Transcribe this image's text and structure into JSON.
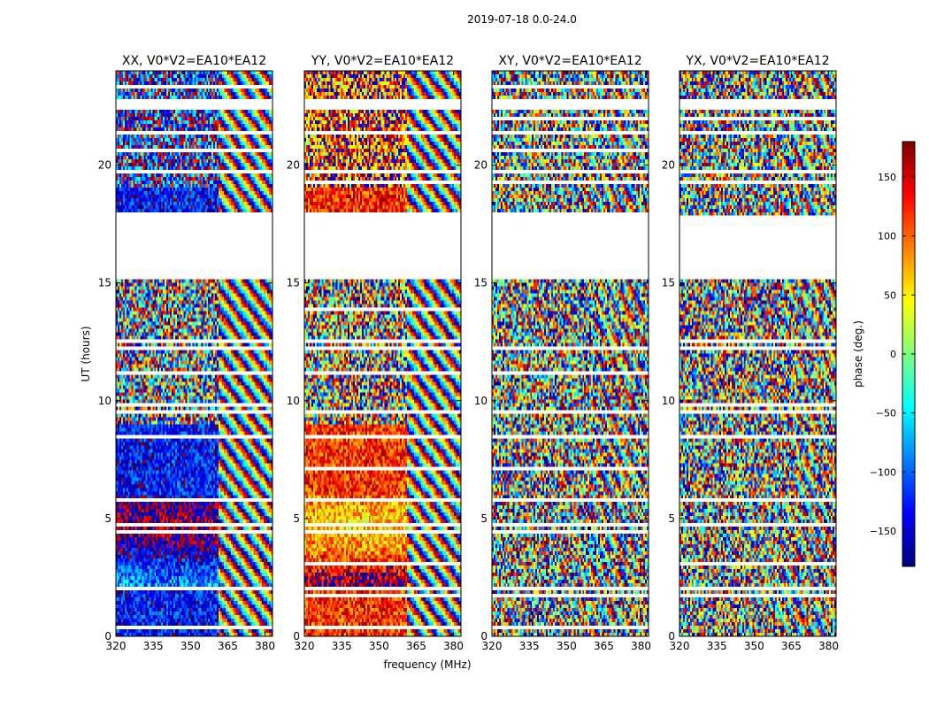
{
  "chart_data": {
    "type": "heatmap",
    "suptitle": "2019-07-18 0.0-24.0",
    "xlabel": "frequency (MHz)",
    "ylabel": "UT (hours)",
    "xlim": [
      320,
      383
    ],
    "ylim": [
      0,
      24
    ],
    "xticks": [
      320,
      335,
      350,
      365,
      380
    ],
    "yticks": [
      0,
      5,
      10,
      15,
      20
    ],
    "colorbar": {
      "label": "phase (deg.)",
      "range": [
        -180,
        180
      ],
      "ticks": [
        150,
        100,
        50,
        0,
        -50,
        -100,
        -150
      ],
      "tick_labels": [
        "150",
        "100",
        "50",
        "0",
        "−50",
        "−100",
        "−150"
      ],
      "colormap": [
        "#00007f",
        "#0000ff",
        "#007fff",
        "#00ffff",
        "#7fff7f",
        "#ffff00",
        "#ff7f00",
        "#ff0000",
        "#7f0000"
      ]
    },
    "flagged_ut_ranges": [
      [
        1.3,
        1.4
      ],
      [
        1.9,
        2.05
      ],
      [
        4.7,
        4.8
      ],
      [
        9.4,
        9.55
      ],
      [
        12.15,
        12.3
      ],
      [
        15.1,
        17.8
      ],
      [
        19.7,
        19.85
      ],
      [
        21.3,
        21.5
      ],
      [
        22.4,
        22.85
      ]
    ],
    "panels": [
      {
        "title": "XX, V0*V2=EA10*EA12",
        "pol": "XX",
        "mode": "coherent",
        "base_phase": -130,
        "late_band_phase": 25
      },
      {
        "title": "YY, V0*V2=EA10*EA12",
        "pol": "YY",
        "mode": "coherent",
        "base_phase": 120,
        "late_band_phase": -110
      },
      {
        "title": "XY, V0*V2=EA10*EA12",
        "pol": "XY",
        "mode": "noise",
        "base_phase": 0,
        "late_band_phase": 0
      },
      {
        "title": "YX, V0*V2=EA10*EA12",
        "pol": "YX",
        "mode": "noise",
        "base_phase": 0,
        "late_band_phase": 0
      }
    ]
  }
}
